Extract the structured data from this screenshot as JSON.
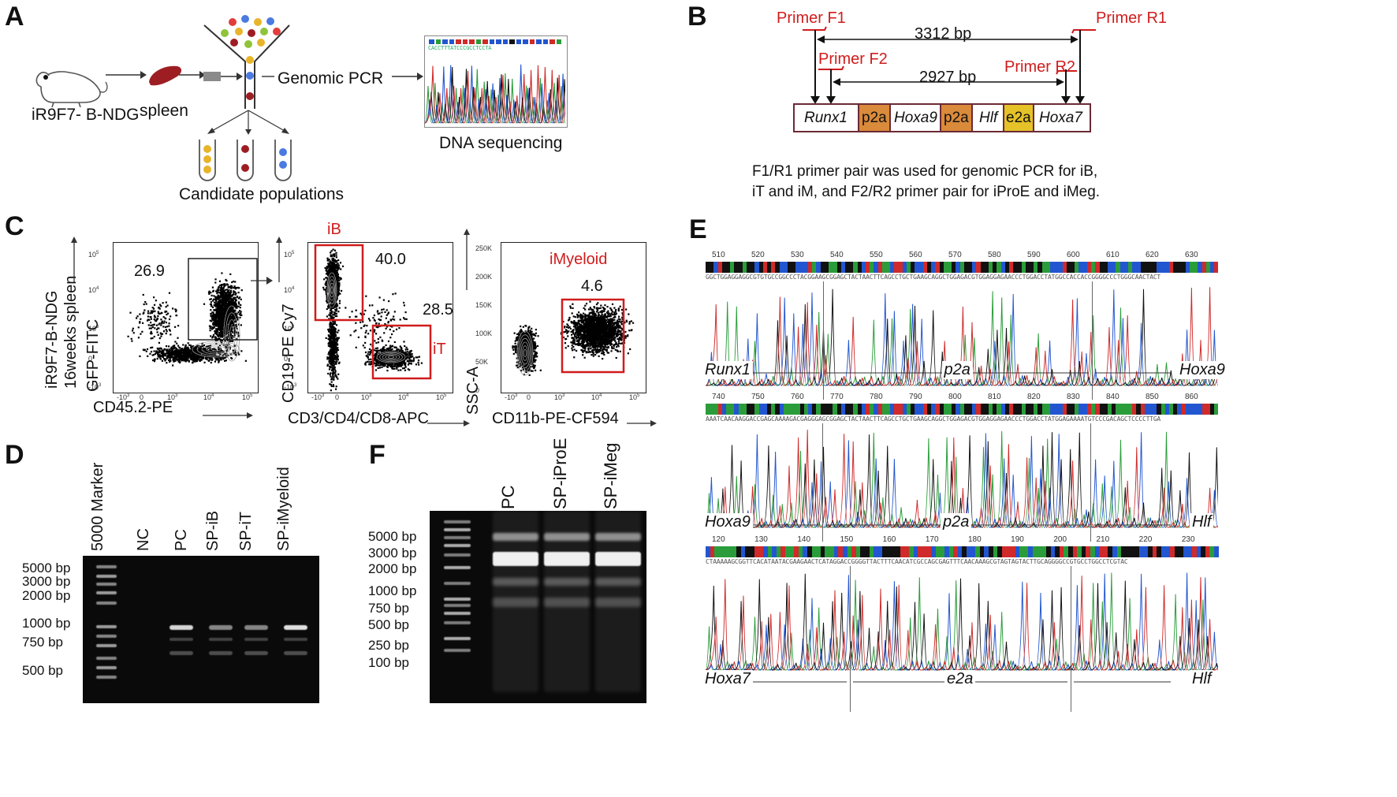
{
  "panels": {
    "A": "A",
    "B": "B",
    "C": "C",
    "D": "D",
    "E": "E",
    "F": "F"
  },
  "panelA": {
    "mouse_label": "iR9F7- B-NDG",
    "spleen_label": "spleen",
    "pcr_label": "Genomic PCR",
    "seq_label": "DNA sequencing",
    "candidates_label": "Candidate populations",
    "seq_letters": "CACCTTTATCCCGCCTCCTA"
  },
  "panelB": {
    "primer_f1": "Primer F1",
    "primer_r1": "Primer R1",
    "primer_f2": "Primer F2",
    "primer_r2": "Primer R2",
    "len1": "3312 bp",
    "len2": "2927 bp",
    "segments": [
      "Runx1",
      "p2a",
      "Hoxa9",
      "p2a",
      "Hlf",
      "e2a",
      "Hoxa7"
    ],
    "caption_line1": "F1/R1 primer pair was used for genomic PCR for iB,",
    "caption_line2": "iT and iM, and F2/R2 primer pair for iProE and iMeg.",
    "colors": {
      "p2a": "#d98a3a",
      "e2a": "#e4c228",
      "border": "#6b2a35"
    }
  },
  "panelC": {
    "side_label_1": "iR9F7-B-NDG",
    "side_label_2": "16weeks  spleen",
    "plot1": {
      "ylabel": "GFP-FITC",
      "xlabel": "CD45.2-PE",
      "value": "26.9"
    },
    "plot2": {
      "ylabel": "CD19-PE Cy7",
      "xlabel": "CD3/CD4/CD8-APC",
      "gate1": "iB",
      "gate1_value": "40.0",
      "gate2": "iT",
      "gate2_value": "28.5"
    },
    "plot3": {
      "ylabel": "SSC-A",
      "xlabel": "CD11b-PE-CF594",
      "gate": "iMyeloid",
      "gate_value": "4.6",
      "yticks": [
        "250K",
        "200K",
        "150K",
        "100K",
        "50K",
        "0"
      ]
    },
    "log_ticks_y": [
      "10^5",
      "10^4",
      "10^3",
      "0",
      "-10^3"
    ],
    "log_ticks_x": [
      "-10^3",
      "0",
      "10^3",
      "10^4",
      "10^5"
    ]
  },
  "panelD": {
    "lanes": [
      "5000 Marker",
      "NC",
      "PC",
      "SP-iB",
      "SP-iT",
      "SP-iMyeloid"
    ],
    "sizes": [
      "5000 bp",
      "3000 bp",
      "2000 bp",
      "1000 bp",
      "750 bp",
      "500 bp"
    ]
  },
  "panelF": {
    "lanes": [
      "PC",
      "SP-iProE",
      "SP-iMeg"
    ],
    "sizes": [
      "5000 bp",
      "3000 bp",
      "2000 bp",
      "1000 bp",
      "750 bp",
      "500 bp",
      "250 bp",
      "100 bp"
    ]
  },
  "panelE": {
    "rows": [
      {
        "ticks": [
          "510",
          "520",
          "530",
          "540",
          "550",
          "560",
          "570",
          "580",
          "590",
          "600",
          "610",
          "620",
          "630"
        ],
        "seq": "GGCTGGAGGAGGCGTGTGCCGGCCCTACGGAAGCGGAGCTACTAACTTCAGCCTGCTGAAGCAGGCTGGAGACGTGGAGGAGAACCCTGGACCTATGGCCACCACCGGGGCCCTGGGCAACTACT",
        "labels": [
          "Runx1",
          "p2a",
          "Hoxa9"
        ]
      },
      {
        "ticks": [
          "740",
          "750",
          "760",
          "770",
          "780",
          "790",
          "800",
          "810",
          "820",
          "830",
          "840",
          "850",
          "860"
        ],
        "seq": "AAATCAACAAGGACCGAGCAAAAGACGAGGGAGCGGAGCTACTAACTTCAGCCTGCTGAAGCAGGCTGGAGACGTGGAGGAGAACCCTGGACCTATGGAGAAAATGTCCCGACAGCTCCCCTTGA",
        "labels": [
          "Hoxa9",
          "p2a",
          "Hlf"
        ]
      },
      {
        "ticks": [
          "120",
          "130",
          "140",
          "150",
          "160",
          "170",
          "180",
          "190",
          "200",
          "210",
          "220",
          "230"
        ],
        "seq": "CTAAAAAGCGGTTCACATAATACGAAGAACTCATAGGACCGGGGTTACTTTCAACATCGCCAGCGAGTTTCAACAAAGCGTAGTAGTACTTGCAGGGGCCGTGCCTGGCCTCGTAC",
        "labels": [
          "Hoxa7",
          "e2a",
          "Hlf"
        ]
      }
    ]
  }
}
